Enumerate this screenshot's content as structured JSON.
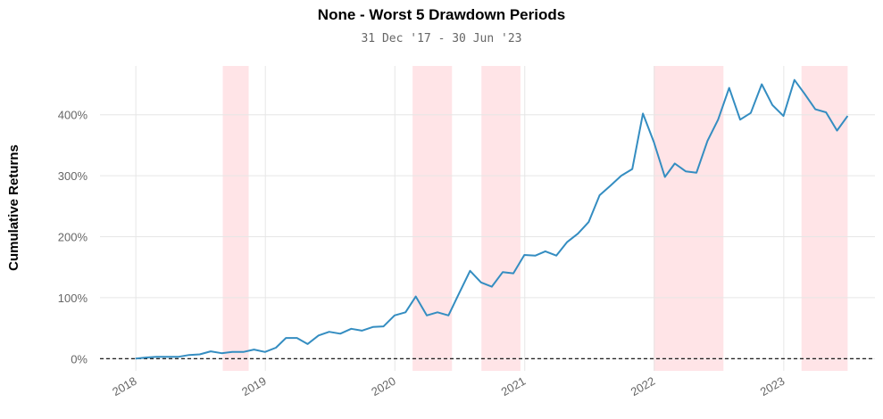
{
  "chart_data": {
    "type": "line",
    "title": "None - Worst 5 Drawdown Periods",
    "subtitle": "31 Dec '17 - 30 Jun '23",
    "xlabel": "",
    "ylabel": "Cumulative Returns",
    "xlim": [
      "2017-09-22",
      "2023-09-15"
    ],
    "ylim": [
      -20,
      480
    ],
    "x_ticks": [
      "2018-01-01",
      "2019-01-01",
      "2020-01-01",
      "2021-01-01",
      "2022-01-01",
      "2023-01-01"
    ],
    "x_tick_labels": [
      "2018",
      "2019",
      "2020",
      "2021",
      "2022",
      "2023"
    ],
    "y_ticks": [
      0,
      100,
      200,
      300,
      400
    ],
    "y_tick_labels": [
      "0%",
      "100%",
      "200%",
      "300%",
      "400%"
    ],
    "grid": true,
    "baseline": 0,
    "line_color": "#348dc1",
    "shade_color": "#ff6b7a",
    "series": [
      {
        "x": [
          "2017-12-31",
          "2018-01-31",
          "2018-02-28",
          "2018-03-31",
          "2018-04-30",
          "2018-05-31",
          "2018-06-30",
          "2018-07-31",
          "2018-08-31",
          "2018-09-30",
          "2018-10-31",
          "2018-11-30",
          "2018-12-31",
          "2019-01-31",
          "2019-02-28",
          "2019-03-31",
          "2019-04-30",
          "2019-05-31",
          "2019-06-30",
          "2019-07-31",
          "2019-08-31",
          "2019-09-30",
          "2019-10-31",
          "2019-11-30",
          "2019-12-31",
          "2020-01-31",
          "2020-02-29",
          "2020-03-31",
          "2020-04-30",
          "2020-05-31",
          "2020-06-30",
          "2020-07-31",
          "2020-08-31",
          "2020-09-30",
          "2020-10-31",
          "2020-11-30",
          "2020-12-31",
          "2021-01-31",
          "2021-02-28",
          "2021-03-31",
          "2021-04-30",
          "2021-05-31",
          "2021-06-30",
          "2021-07-31",
          "2021-08-31",
          "2021-09-30",
          "2021-10-31",
          "2021-11-30",
          "2021-12-31",
          "2022-01-31",
          "2022-02-28",
          "2022-03-31",
          "2022-04-30",
          "2022-05-31",
          "2022-06-30",
          "2022-07-31",
          "2022-08-31",
          "2022-09-30",
          "2022-10-31",
          "2022-11-30",
          "2022-12-31",
          "2023-01-31",
          "2023-02-28",
          "2023-03-31",
          "2023-04-30",
          "2023-05-31",
          "2023-06-30"
        ],
        "values": [
          0,
          2,
          3,
          3,
          3,
          6,
          7,
          12,
          9,
          11,
          11,
          15,
          11,
          18,
          34,
          34,
          24,
          38,
          44,
          41,
          49,
          46,
          52,
          53,
          71,
          76,
          102,
          71,
          76,
          71,
          107,
          144,
          125,
          118,
          142,
          140,
          170,
          169,
          176,
          169,
          191,
          205,
          224,
          268,
          284,
          300,
          311,
          402,
          355,
          298,
          320,
          307,
          305,
          357,
          392,
          444,
          392,
          403,
          450,
          416,
          398,
          457,
          435,
          409,
          404,
          374,
          398
        ]
      }
    ],
    "drawdown_periods": [
      {
        "start": "2018-09-03",
        "end": "2018-11-15"
      },
      {
        "start": "2020-02-20",
        "end": "2020-06-10"
      },
      {
        "start": "2020-09-01",
        "end": "2020-12-20"
      },
      {
        "start": "2021-12-30",
        "end": "2022-07-15"
      },
      {
        "start": "2023-02-20",
        "end": "2023-06-30"
      }
    ]
  }
}
